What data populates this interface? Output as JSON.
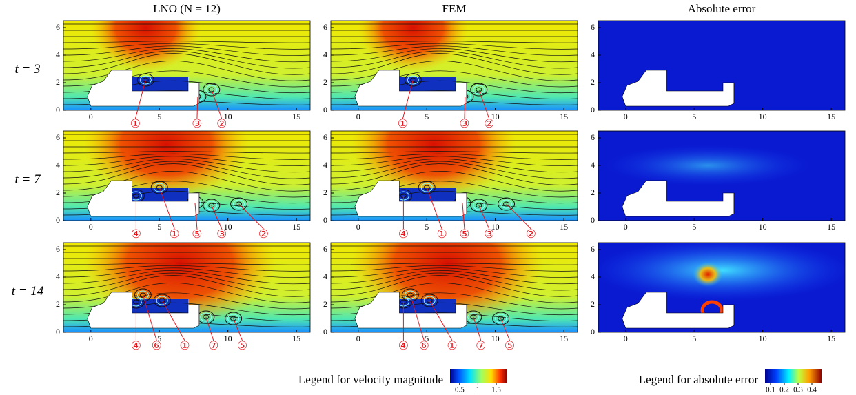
{
  "columns": [
    "LNO (N = 12)",
    "FEM",
    "Absolute error"
  ],
  "rows": [
    "t = 3",
    "t = 7",
    "t = 14"
  ],
  "axes": {
    "xlim": [
      -2,
      16
    ],
    "ylim": [
      0,
      6.5
    ],
    "xticks": [
      0,
      5,
      10,
      15
    ],
    "yticks": [
      0,
      2,
      4,
      6
    ]
  },
  "markers": [
    [
      "①",
      "③",
      "②"
    ],
    [
      "④",
      "①",
      "⑤",
      "③",
      "②"
    ],
    [
      "④",
      "⑥",
      "①",
      "⑦",
      "⑤"
    ]
  ],
  "legends": [
    {
      "title": "Legend for velocity magnitude",
      "lim": [
        0.24,
        1.8
      ],
      "ticks": [
        0.5,
        1,
        1.5
      ]
    },
    {
      "title": "Legend for absolute error",
      "lim": [
        0.06,
        0.47
      ],
      "ticks": [
        0.1,
        0.2,
        0.3,
        0.4
      ]
    }
  ]
}
